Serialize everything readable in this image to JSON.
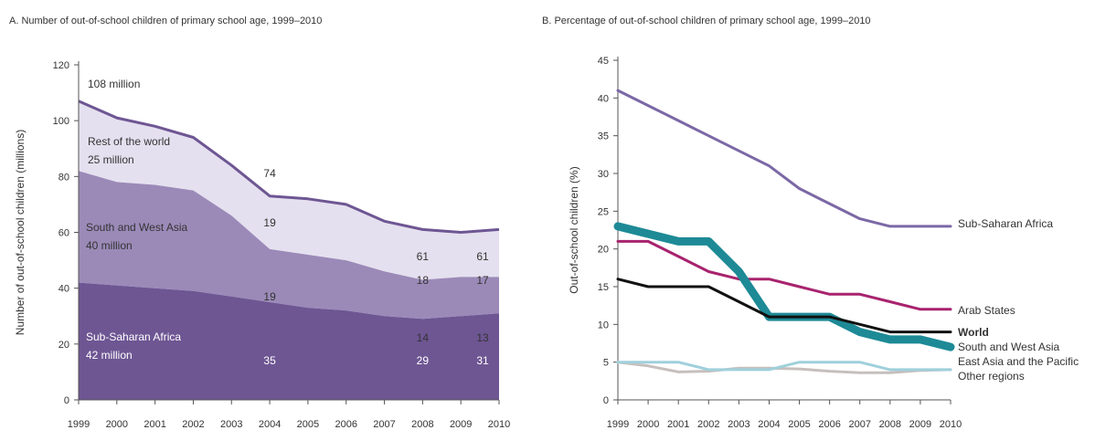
{
  "chart_data": [
    {
      "type": "area",
      "title": "A. Number of out-of-school children of primary school age, 1999–2010",
      "ylabel": "Number of out-of-school children (millions)",
      "xlabel": "",
      "ylim": [
        0,
        120
      ],
      "yticks": [
        "0",
        "20",
        "40",
        "60",
        "80",
        "100",
        "120"
      ],
      "categories": [
        "1999",
        "2000",
        "2001",
        "2002",
        "2003",
        "2004",
        "2005",
        "2006",
        "2007",
        "2008",
        "2009",
        "2010"
      ],
      "stacked": true,
      "series": [
        {
          "name": "Sub-Saharan Africa",
          "color": "#6e5693",
          "values": [
            42,
            41,
            40,
            39,
            37,
            35,
            33,
            32,
            30,
            29,
            30,
            31
          ]
        },
        {
          "name": "South and West Asia",
          "color": "#9b8ab8",
          "values": [
            40,
            37,
            37,
            36,
            29,
            19,
            19,
            18,
            16,
            14,
            14,
            13
          ]
        },
        {
          "name": "Rest of the world",
          "color": "#e5e0ef",
          "values": [
            25,
            23,
            21,
            19,
            18,
            19,
            20,
            20,
            18,
            18,
            16,
            17
          ]
        }
      ],
      "total_line_color": "#6e5693",
      "annotations": {
        "start_total": "108 million",
        "rest_name": "Rest of the world",
        "rest_value": "25 million",
        "swa_name": "South and West Asia",
        "swa_value": "40 million",
        "ssa_name": "Sub-Saharan Africa",
        "ssa_value": "42 million",
        "total_2004": "74",
        "total_2008": "61",
        "total_2010": "61",
        "rest_2004": "19",
        "rest_2008": "18",
        "rest_2010": "17",
        "swa_2004": "19",
        "swa_2008": "14",
        "swa_2010": "13",
        "ssa_2004": "35",
        "ssa_2008": "29",
        "ssa_2010": "31"
      }
    },
    {
      "type": "line",
      "title": "B. Percentage of out-of-school children of primary school age, 1999–2010",
      "ylabel": "Out-of-school children (%)",
      "xlabel": "",
      "ylim": [
        0,
        45
      ],
      "yticks": [
        "0",
        "5",
        "10",
        "15",
        "20",
        "25",
        "30",
        "35",
        "40",
        "45"
      ],
      "categories": [
        "1999",
        "2000",
        "2001",
        "2002",
        "2003",
        "2004",
        "2005",
        "2006",
        "2007",
        "2008",
        "2009",
        "2010"
      ],
      "series": [
        {
          "name": "Sub-Saharan Africa",
          "color": "#7b68a6",
          "values": [
            41,
            39,
            37,
            35,
            33,
            31,
            28,
            26,
            24,
            23,
            23,
            23
          ]
        },
        {
          "name": "Arab States",
          "color": "#a8236e",
          "values": [
            21,
            21,
            19,
            17,
            16,
            16,
            15,
            14,
            14,
            13,
            12,
            12
          ]
        },
        {
          "name": "World",
          "color": "#111111",
          "values": [
            16,
            15,
            15,
            15,
            13,
            11,
            11,
            11,
            10,
            9,
            9,
            9
          ]
        },
        {
          "name": "South and West Asia",
          "color": "#1d8a96",
          "values": [
            23,
            22,
            21,
            21,
            17,
            11,
            11,
            11,
            9,
            8,
            8,
            7
          ]
        },
        {
          "name": "East Asia and the Pacific",
          "color": "#9fd0dc",
          "values": [
            5,
            5,
            5,
            4,
            4,
            4,
            5,
            5,
            5,
            4,
            4,
            4
          ]
        },
        {
          "name": "Other regions",
          "color": "#c6bfbd",
          "values": [
            5,
            4.5,
            3.7,
            3.8,
            4.2,
            4.2,
            4.1,
            3.8,
            3.6,
            3.6,
            3.9,
            4
          ]
        }
      ]
    }
  ]
}
